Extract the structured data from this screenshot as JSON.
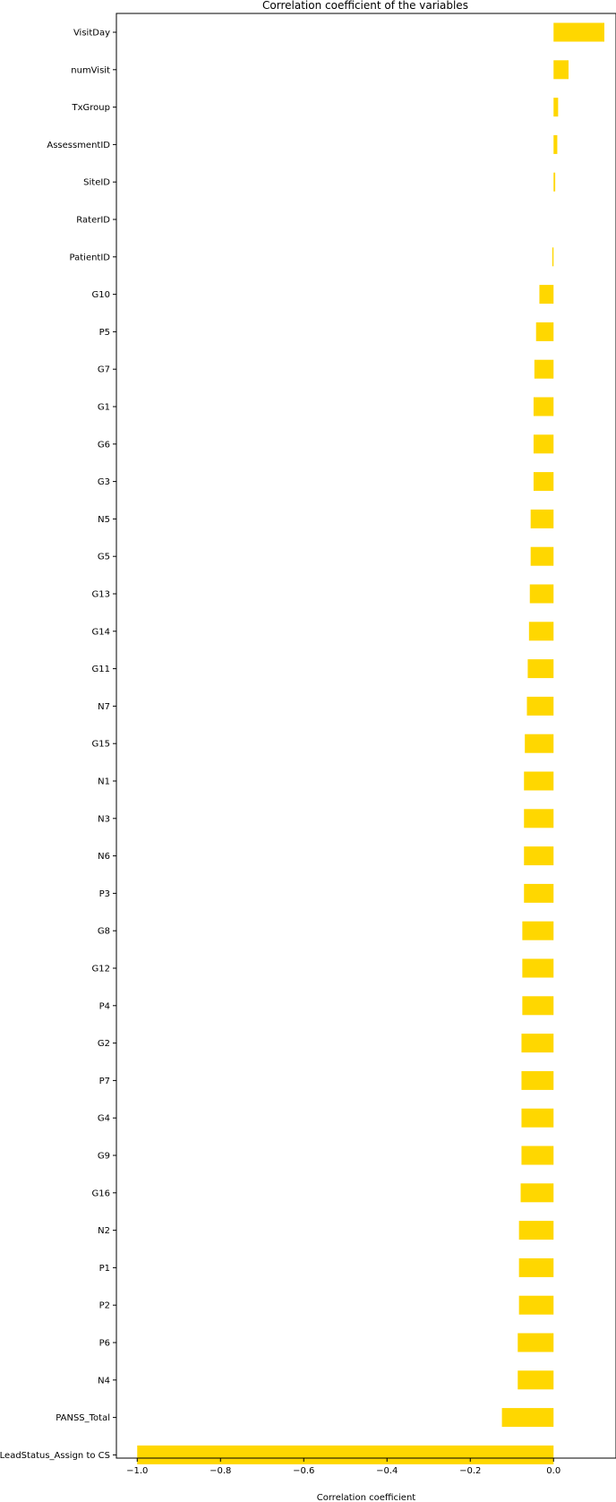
{
  "chart_data": {
    "type": "bar",
    "orientation": "horizontal",
    "title": "Correlation coefficient of the variables",
    "xlabel": "Correlation coefficient",
    "ylabel": "",
    "xlim": [
      -1.05,
      0.15
    ],
    "xticks": [
      -1.0,
      -0.8,
      -0.6,
      -0.4,
      -0.2,
      0.0
    ],
    "xtick_labels": [
      "−1.0",
      "−0.8",
      "−0.6",
      "−0.4",
      "−0.2",
      "0.0"
    ],
    "grid": false,
    "bar_color": "#FFD700",
    "categories": [
      "VisitDay",
      "numVisit",
      "TxGroup",
      "AssessmentID",
      "SiteID",
      "RaterID",
      "PatientID",
      "G10",
      "P5",
      "G7",
      "G1",
      "G6",
      "G3",
      "N5",
      "G5",
      "G13",
      "G14",
      "G11",
      "N7",
      "G15",
      "N1",
      "N3",
      "N6",
      "P3",
      "G8",
      "G12",
      "P4",
      "G2",
      "P7",
      "G4",
      "G9",
      "G16",
      "N2",
      "P1",
      "P2",
      "P6",
      "N4",
      "PANSS_Total",
      "LeadStatus_Assign to CS"
    ],
    "values": [
      0.122,
      0.036,
      0.011,
      0.009,
      0.004,
      0.0,
      -0.003,
      -0.034,
      -0.042,
      -0.046,
      -0.048,
      -0.048,
      -0.048,
      -0.055,
      -0.055,
      -0.057,
      -0.059,
      -0.062,
      -0.064,
      -0.069,
      -0.071,
      -0.071,
      -0.071,
      -0.071,
      -0.075,
      -0.075,
      -0.075,
      -0.077,
      -0.077,
      -0.077,
      -0.077,
      -0.079,
      -0.083,
      -0.083,
      -0.083,
      -0.086,
      -0.086,
      -0.124,
      -1.0
    ]
  }
}
